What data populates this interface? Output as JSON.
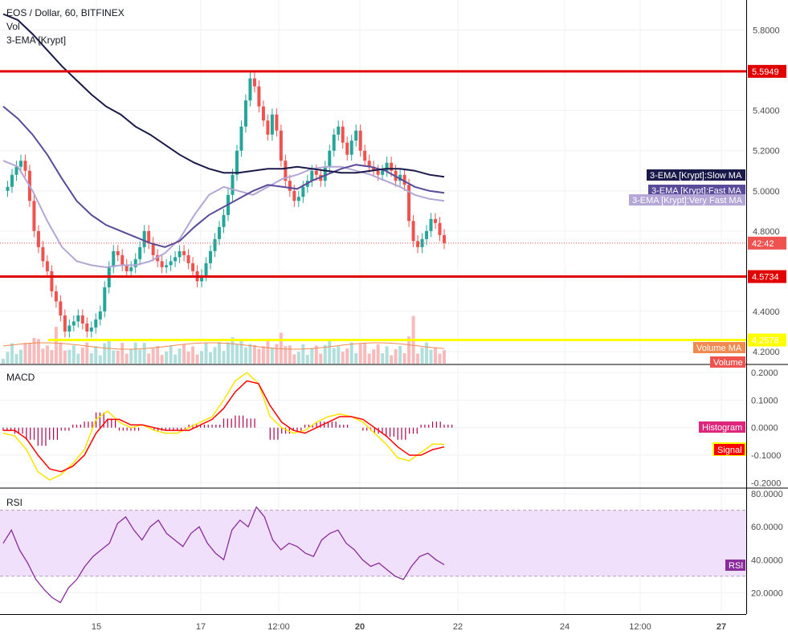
{
  "header": {
    "symbol_line": "EOS / Dollar, 60, BITFINEX",
    "vol_label": "Vol",
    "ema_label": "3-EMA [Krypt]"
  },
  "panes": {
    "macd_label": "MACD",
    "rsi_label": "RSI"
  },
  "colors": {
    "up": "#26a69a",
    "down": "#ef5350",
    "slow_ma": "#1a1a4a",
    "fast_ma": "#5a4a9a",
    "very_fast_ma": "#b4a6d6",
    "hline_red": "#e00000",
    "hline_yellow": "#ffff00",
    "macd": "#ffe400",
    "signal": "#ff0000",
    "hist_pos": "#b0004a",
    "rsi_line": "#8a2c9c",
    "rsi_band": "#f0e0fc",
    "volume_ma": "#f08a50"
  },
  "price_axis": {
    "ticks": [
      "5.8000",
      "5.4000",
      "5.2000",
      "5.0000",
      "4.8000",
      "4.4000",
      "4.2000"
    ],
    "tick_values": [
      5.8,
      5.4,
      5.2,
      5.0,
      4.8,
      4.4,
      4.2
    ],
    "range": [
      4.14,
      5.95
    ]
  },
  "macd_axis": {
    "ticks": [
      "0.2000",
      "0.1000",
      "0.0000",
      "-0.1000",
      "-0.2000"
    ],
    "tick_values": [
      0.2,
      0.1,
      0.0,
      -0.1,
      -0.2
    ],
    "range": [
      -0.205,
      0.215
    ]
  },
  "rsi_axis": {
    "ticks": [
      "80.0000",
      "60.0000",
      "40.0000",
      "20.0000"
    ],
    "tick_values": [
      80,
      60,
      40,
      20
    ],
    "range": [
      7,
      83
    ],
    "band": [
      30,
      70
    ]
  },
  "time_axis": {
    "labels": [
      "15",
      "17",
      "12:00",
      "20",
      "22",
      "24",
      "12:00",
      "27"
    ],
    "bold": [
      false,
      false,
      false,
      true,
      false,
      false,
      false,
      true
    ]
  },
  "tags": {
    "upper_red": "5.5949",
    "countdown": "42:42",
    "lower_red": "4.5734",
    "yellow": "4.2578",
    "slow_ma": "3-EMA [Krypt]:Slow MA",
    "fast_ma": "3-EMA [Krypt]:Fast MA",
    "very_fast_ma": "3-EMA [Krypt]:Very Fast MA",
    "volume_ma": "Volume MA",
    "volume": "Volume",
    "histogram": "Histogram",
    "signal": "Signal",
    "rsi": "RSI"
  },
  "chart_data": {
    "type": "candlestick",
    "title": "EOS / Dollar, 60, BITFINEX",
    "horizontal_levels": [
      {
        "value": 5.5949,
        "color": "red"
      },
      {
        "value": 4.5734,
        "color": "red"
      },
      {
        "value": 4.2578,
        "color": "yellow"
      }
    ],
    "close_series": [
      5.0,
      5.02,
      5.08,
      5.12,
      5.15,
      5.1,
      4.95,
      4.8,
      4.72,
      4.65,
      4.6,
      4.5,
      4.45,
      4.38,
      4.3,
      4.33,
      4.35,
      4.38,
      4.34,
      4.3,
      4.32,
      4.36,
      4.4,
      4.52,
      4.62,
      4.7,
      4.68,
      4.63,
      4.6,
      4.62,
      4.66,
      4.72,
      4.8,
      4.74,
      4.68,
      4.65,
      4.62,
      4.63,
      4.65,
      4.67,
      4.7,
      4.68,
      4.64,
      4.6,
      4.55,
      4.58,
      4.64,
      4.7,
      4.76,
      4.82,
      4.88,
      4.98,
      5.08,
      5.2,
      5.32,
      5.45,
      5.56,
      5.52,
      5.42,
      5.35,
      5.28,
      5.38,
      5.3,
      5.15,
      5.05,
      5.0,
      4.95,
      4.97,
      5.02,
      5.05,
      5.1,
      5.08,
      5.05,
      5.12,
      5.2,
      5.28,
      5.32,
      5.24,
      5.18,
      5.25,
      5.3,
      5.2,
      5.15,
      5.12,
      5.1,
      5.08,
      5.1,
      5.14,
      5.1,
      5.05,
      5.08,
      5.03,
      4.85,
      4.75,
      4.72,
      4.76,
      4.8,
      4.86,
      4.84,
      4.78,
      4.74
    ],
    "volume_ma_level": "low",
    "slow_ma": [
      5.88,
      5.85,
      5.78,
      5.7,
      5.62,
      5.55,
      5.48,
      5.42,
      5.38,
      5.32,
      5.28,
      5.23,
      5.18,
      5.14,
      5.11,
      5.09,
      5.09,
      5.1,
      5.11,
      5.11,
      5.12,
      5.11,
      5.1,
      5.09,
      5.09,
      5.1,
      5.11,
      5.11,
      5.1,
      5.08,
      5.07
    ],
    "fast_ma": [
      5.42,
      5.36,
      5.28,
      5.18,
      5.06,
      4.95,
      4.88,
      4.83,
      4.8,
      4.77,
      4.74,
      4.72,
      4.75,
      4.82,
      4.88,
      4.92,
      4.96,
      5.0,
      5.03,
      5.02,
      5.01,
      5.05,
      5.08,
      5.11,
      5.13,
      5.12,
      5.1,
      5.06,
      5.02,
      5.0,
      4.99
    ],
    "very_fast_ma": [
      5.15,
      5.12,
      5.0,
      4.85,
      4.72,
      4.65,
      4.63,
      4.62,
      4.63,
      4.63,
      4.65,
      4.69,
      4.76,
      4.88,
      4.98,
      5.02,
      5.0,
      4.98,
      5.02,
      5.06,
      5.08,
      5.11,
      5.12,
      5.12,
      5.1,
      5.08,
      5.05,
      5.02,
      4.98,
      4.96,
      4.95
    ],
    "macd": [
      -0.02,
      -0.03,
      -0.08,
      -0.16,
      -0.19,
      -0.17,
      -0.13,
      -0.08,
      0.03,
      0.06,
      0.02,
      0.0,
      0.01,
      -0.01,
      -0.02,
      -0.02,
      0.0,
      0.02,
      0.04,
      0.1,
      0.17,
      0.2,
      0.16,
      0.04,
      0.0,
      -0.02,
      -0.01,
      0.02,
      0.04,
      0.05,
      0.04,
      0.02,
      -0.02,
      -0.06,
      -0.11,
      -0.12,
      -0.09,
      -0.06,
      -0.06
    ],
    "signal": [
      -0.01,
      -0.01,
      -0.04,
      -0.1,
      -0.15,
      -0.16,
      -0.14,
      -0.1,
      -0.02,
      0.03,
      0.03,
      0.01,
      0.01,
      0.0,
      -0.01,
      -0.01,
      -0.01,
      0.01,
      0.03,
      0.07,
      0.13,
      0.17,
      0.16,
      0.08,
      0.02,
      -0.01,
      -0.02,
      0.0,
      0.02,
      0.04,
      0.04,
      0.03,
      0.0,
      -0.03,
      -0.07,
      -0.1,
      -0.1,
      -0.08,
      -0.07
    ],
    "rsi": [
      50,
      58,
      46,
      38,
      28,
      22,
      17,
      14,
      23,
      28,
      36,
      42,
      46,
      50,
      62,
      66,
      58,
      52,
      60,
      64,
      56,
      52,
      48,
      56,
      60,
      50,
      44,
      40,
      58,
      64,
      60,
      72,
      66,
      52,
      46,
      50,
      48,
      44,
      42,
      52,
      56,
      58,
      50,
      46,
      40,
      36,
      38,
      34,
      30,
      28,
      36,
      42,
      44,
      40,
      37
    ],
    "ylabel": "",
    "xlabel": ""
  }
}
